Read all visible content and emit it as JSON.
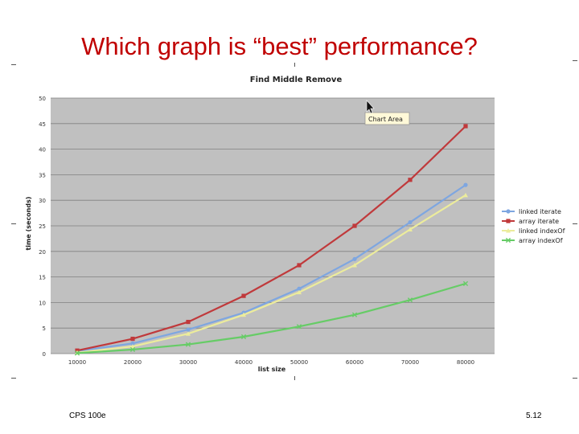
{
  "slide": {
    "title": "Which graph is “best” performance?",
    "footer_left": "CPS 100e",
    "footer_right": "5.12"
  },
  "tooltip": {
    "text": "Chart Area"
  },
  "colors": {
    "plot_bg": "#c0c0c0",
    "grid": "#808080",
    "title": "#c00000"
  },
  "chart_data": {
    "type": "line",
    "title": "Find Middle Remove",
    "xlabel": "list size",
    "ylabel": "time (seconds)",
    "categories": [
      "10000",
      "20000",
      "30000",
      "40000",
      "50000",
      "60000",
      "70000",
      "80000"
    ],
    "ylim": [
      0,
      50
    ],
    "yticks": [
      "0",
      "5",
      "10",
      "15",
      "20",
      "25",
      "30",
      "35",
      "40",
      "45",
      "50"
    ],
    "grid": true,
    "legend_position": "right",
    "series": [
      {
        "name": "linked iterate",
        "color": "#7ea6e0",
        "marker": "circle",
        "values": [
          0.5,
          2,
          4.7,
          8,
          12.7,
          18.5,
          25.7,
          33
        ]
      },
      {
        "name": "array iterate",
        "color": "#c0393b",
        "marker": "square",
        "values": [
          0.6,
          2.9,
          6.2,
          11.3,
          17.3,
          25,
          34,
          44.5
        ]
      },
      {
        "name": "linked indexOf",
        "color": "#ecec9c",
        "marker": "triangle",
        "values": [
          0.2,
          1.4,
          3.9,
          7.6,
          12,
          17.3,
          24.3,
          31
        ]
      },
      {
        "name": "array indexOf",
        "color": "#66cc66",
        "marker": "x",
        "values": [
          0.1,
          0.8,
          1.8,
          3.3,
          5.3,
          7.6,
          10.5,
          13.7
        ]
      }
    ]
  }
}
